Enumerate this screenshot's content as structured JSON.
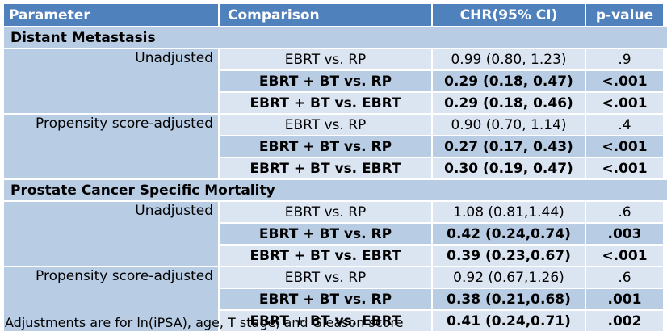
{
  "header": {
    "parameter": "Parameter",
    "comparison": "Comparison",
    "chr": "CHR(95% CI)",
    "pvalue": "p-value"
  },
  "sections": [
    {
      "title": "Distant Metastasis",
      "groups": [
        {
          "label": "Unadjusted",
          "rows": [
            {
              "comparison": "EBRT vs. RP",
              "chr": "0.99 (0.80, 1.23)",
              "p": ".9",
              "bold": false
            },
            {
              "comparison": "EBRT + BT vs. RP",
              "chr": "0.29 (0.18, 0.47)",
              "p": "<.001",
              "bold": true
            },
            {
              "comparison": "EBRT + BT vs. EBRT",
              "chr": "0.29 (0.18, 0.46)",
              "p": "<.001",
              "bold": true
            }
          ]
        },
        {
          "label": "Propensity score-adjusted",
          "rows": [
            {
              "comparison": "EBRT vs. RP",
              "chr": "0.90 (0.70, 1.14)",
              "p": ".4",
              "bold": false
            },
            {
              "comparison": "EBRT + BT vs. RP",
              "chr": "0.27 (0.17, 0.43)",
              "p": "<.001",
              "bold": true
            },
            {
              "comparison": "EBRT + BT vs. EBRT",
              "chr": "0.30 (0.19, 0.47)",
              "p": "<.001",
              "bold": true
            }
          ]
        }
      ]
    },
    {
      "title": "Prostate Cancer Specific Mortality",
      "groups": [
        {
          "label": "Unadjusted",
          "rows": [
            {
              "comparison": "EBRT vs. RP",
              "chr": "1.08 (0.81,1.44)",
              "p": ".6",
              "bold": false
            },
            {
              "comparison": "EBRT + BT vs. RP",
              "chr": "0.42 (0.24,0.74)",
              "p": ".003",
              "bold": true
            },
            {
              "comparison": "EBRT + BT vs. EBRT",
              "chr": "0.39 (0.23,0.67)",
              "p": "<.001",
              "bold": true
            }
          ]
        },
        {
          "label": "Propensity score-adjusted",
          "rows": [
            {
              "comparison": "EBRT vs. RP",
              "chr": "0.92 (0.67,1.26)",
              "p": ".6",
              "bold": false
            },
            {
              "comparison": "EBRT + BT vs. RP",
              "chr": "0.38 (0.21,0.68)",
              "p": ".001",
              "bold": true
            },
            {
              "comparison": "EBRT + BT vs. EBRT",
              "chr": "0.41 (0.24,0.71)",
              "p": ".002",
              "bold": true
            }
          ]
        }
      ]
    }
  ],
  "footnote": "Adjustments are for ln(iPSA), age, T stage, and Gleason score",
  "colors": {
    "header_bg": "#4f81bd",
    "medium_bg": "#b8cce4",
    "light_bg": "#dbe5f1"
  }
}
